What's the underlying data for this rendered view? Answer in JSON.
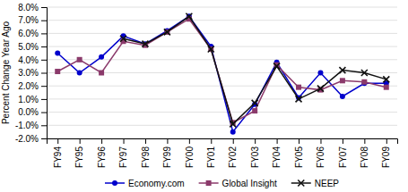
{
  "chart_data": {
    "type": "line",
    "categories": [
      "FY94",
      "FY95",
      "FY96",
      "FY97",
      "FY98",
      "FY99",
      "FY00",
      "FY01",
      "FY02",
      "FY03",
      "FY04",
      "FY05",
      "FY06",
      "FY07",
      "FY08",
      "FY09"
    ],
    "series": [
      {
        "name": "Economy.com",
        "color": "#0000CC",
        "marker": "circle",
        "values": [
          4.5,
          3.0,
          4.2,
          5.8,
          5.2,
          6.2,
          7.3,
          5.0,
          -1.5,
          0.6,
          3.8,
          1.1,
          3.0,
          1.2,
          2.2,
          2.2
        ]
      },
      {
        "name": "Global Insight",
        "color": "#8B3A6B",
        "marker": "square",
        "values": [
          3.1,
          4.0,
          3.0,
          5.4,
          5.1,
          6.1,
          7.1,
          4.8,
          -0.8,
          0.1,
          3.6,
          1.9,
          1.7,
          2.4,
          2.3,
          1.9
        ]
      },
      {
        "name": "NEEP",
        "color": "#111111",
        "marker": "x",
        "values": [
          null,
          null,
          null,
          5.6,
          5.2,
          6.1,
          7.3,
          4.8,
          -0.9,
          0.7,
          3.5,
          1.0,
          1.8,
          3.2,
          3.0,
          2.5
        ]
      }
    ],
    "ylabel": "Percent Change Year Ago",
    "ylim": [
      -2.0,
      8.0
    ],
    "yticks": [
      {
        "value": -2,
        "label": "-2.0%"
      },
      {
        "value": -1,
        "label": "-1.0%"
      },
      {
        "value": 0,
        "label": "0.0%"
      },
      {
        "value": 1,
        "label": "1.0%"
      },
      {
        "value": 2,
        "label": "2.0%"
      },
      {
        "value": 3,
        "label": "3.0%"
      },
      {
        "value": 4,
        "label": "4.0%"
      },
      {
        "value": 5,
        "label": "5.0%"
      },
      {
        "value": 6,
        "label": "6.0%"
      },
      {
        "value": 7,
        "label": "7.0%"
      },
      {
        "value": 8,
        "label": "8.0%"
      }
    ],
    "grid": true,
    "legend": "bottom"
  }
}
